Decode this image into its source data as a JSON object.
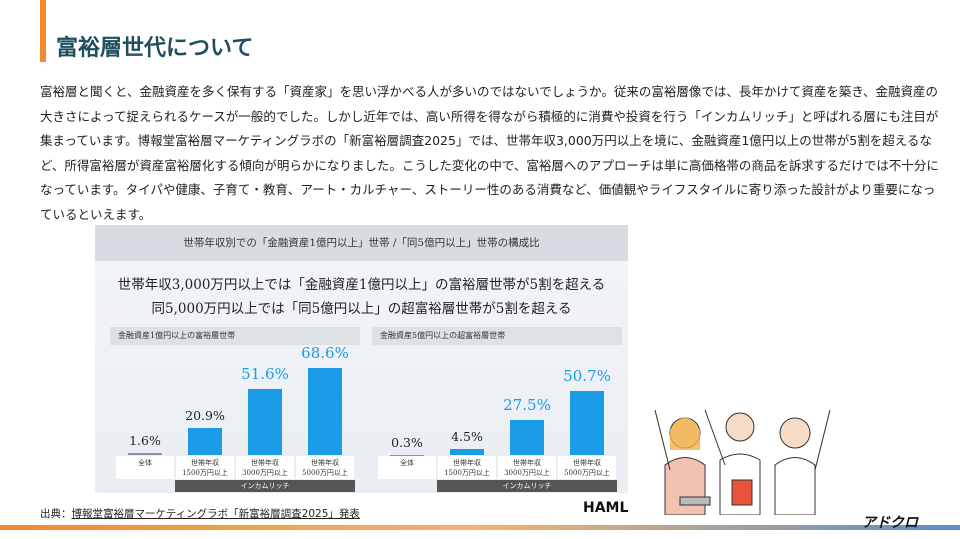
{
  "header": {
    "title": "富裕層世代について"
  },
  "body": "富裕層と聞くと、金融資産を多く保有する「資産家」を思い浮かべる人が多いのではないでしょうか。従来の富裕層像では、長年かけて資産を築き、金融資産の大きさによって捉えられるケースが一般的でした。しかし近年では、高い所得を得ながら積極的に消費や投資を行う「インカムリッチ」と呼ばれる層にも注目が集まっています。博報堂富裕層マーケティングラボの「新富裕層調査2025」では、世帯年収3,000万円以上を境に、金融資産1億円以上の世帯が5割を超えるなど、所得富裕層が資産富裕層化する傾向が明らかになりました。こうした変化の中で、富裕層へのアプローチは単に高価格帯の商品を訴求するだけでは不十分になっています。タイパや健康、子育て・教育、アート・カルチャー、ストーリー性のある消費など、価値観やライフスタイルに寄り添った設計がより重要になっているといえます。",
  "figure": {
    "title": "世帯年収別での「金融資産1億円以上」世帯 /「同5億円以上」世帯の構成比",
    "headlines": [
      "世帯年収3,000万円以上では「金融資産1億円以上」の富裕層世帯が5割を超える",
      "同5,000万円以上では「同5億円以上」の超富裕層世帯が5割を超える"
    ]
  },
  "chart_data": [
    {
      "type": "bar",
      "title": "金融資産1億円以上の富裕層世帯",
      "categories": [
        "全体",
        "世帯年収\n1500万円以上",
        "世帯年収\n3000万円以上",
        "世帯年収\n5000万円以上"
      ],
      "values": [
        1.6,
        20.9,
        51.6,
        68.6
      ],
      "value_labels": [
        "1.6%",
        "20.9%",
        "51.6%",
        "68.6%"
      ],
      "colors": [
        "#8c939b",
        "#1a9be6",
        "#1a9be6",
        "#1a9be6"
      ],
      "group_label": "インカムリッチ"
    },
    {
      "type": "bar",
      "title": "金融資産5億円以上の超富裕層世帯",
      "categories": [
        "全体",
        "世帯年収\n1500万円以上",
        "世帯年収\n3000万円以上",
        "世帯年収\n5000万円以上"
      ],
      "values": [
        0.3,
        4.5,
        27.5,
        50.7
      ],
      "value_labels": [
        "0.3%",
        "4.5%",
        "27.5%",
        "50.7%"
      ],
      "colors": [
        "#8c939b",
        "#1a9be6",
        "#1a9be6",
        "#1a9be6"
      ],
      "group_label": "インカムリッチ"
    }
  ],
  "source": {
    "prefix": "出典：",
    "text": "博報堂富裕層マーケティングラボ「新富裕層調査2025」発表"
  },
  "logos": {
    "haml": "HAML",
    "brand": "アドクロ"
  }
}
